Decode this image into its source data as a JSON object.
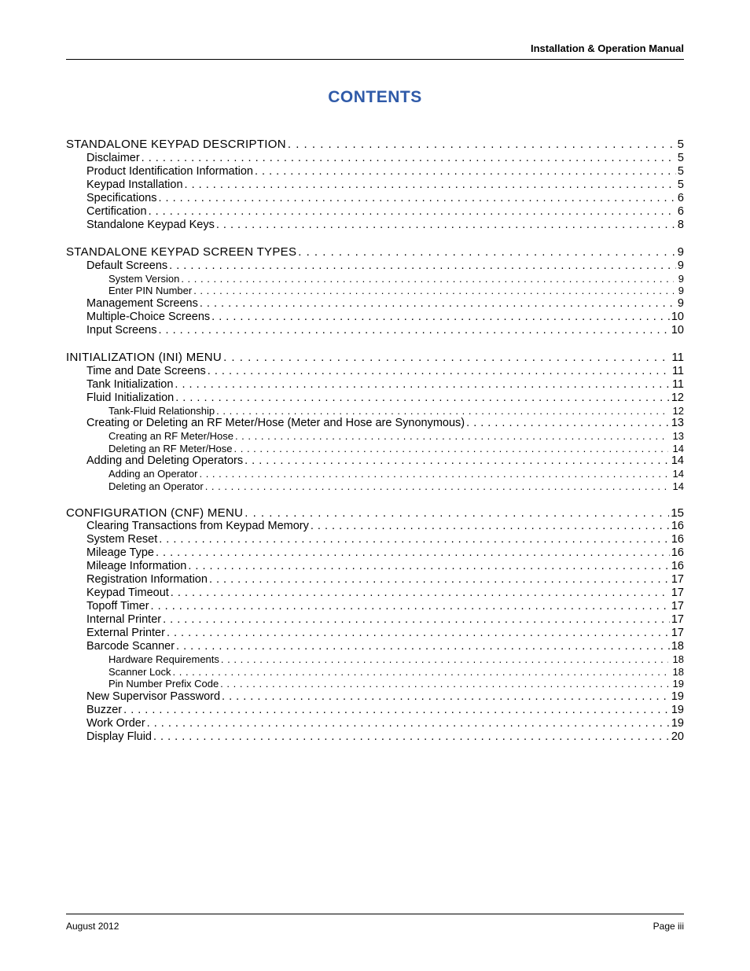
{
  "header": {
    "doc_title": "Installation & Operation Manual"
  },
  "title": "CONTENTS",
  "title_color": "#2f5aa8",
  "footer": {
    "left": "August 2012",
    "right": "Page iii"
  },
  "sections": [
    {
      "heading": {
        "label": "STANDALONE KEYPAD DESCRIPTION",
        "page": "5"
      },
      "items": [
        {
          "level": 1,
          "label": "Disclaimer",
          "page": " 5"
        },
        {
          "level": 1,
          "label": "Product Identification Information",
          "page": " 5"
        },
        {
          "level": 1,
          "label": "Keypad Installation",
          "page": " 5"
        },
        {
          "level": 1,
          "label": "Specifications",
          "page": " 6"
        },
        {
          "level": 1,
          "label": "Certification",
          "page": " 6"
        },
        {
          "level": 1,
          "label": "Standalone Keypad Keys",
          "page": " 8"
        }
      ]
    },
    {
      "heading": {
        "label": "STANDALONE KEYPAD SCREEN TYPES",
        "page": "9"
      },
      "items": [
        {
          "level": 1,
          "label": "Default Screens",
          "page": " 9"
        },
        {
          "level": 2,
          "label": "System Version",
          "page": "9"
        },
        {
          "level": 2,
          "label": "Enter PIN Number",
          "page": "9"
        },
        {
          "level": 1,
          "label": "Management Screens",
          "page": " 9"
        },
        {
          "level": 1,
          "label": "Multiple-Choice Screens",
          "page": "10"
        },
        {
          "level": 1,
          "label": "Input Screens",
          "page": "10"
        }
      ]
    },
    {
      "heading": {
        "label": "INITIALIZATION (INI) MENU",
        "page": "11"
      },
      "items": [
        {
          "level": 1,
          "label": "Time and Date Screens",
          "page": "11"
        },
        {
          "level": 1,
          "label": "Tank Initialization",
          "page": "11"
        },
        {
          "level": 1,
          "label": "Fluid Initialization",
          "page": "12"
        },
        {
          "level": 2,
          "label": "Tank-Fluid Relationship",
          "page": "12"
        },
        {
          "level": 1,
          "label": "Creating or Deleting an RF Meter/Hose (Meter and Hose are Synonymous)",
          "page": "13"
        },
        {
          "level": 2,
          "label": "Creating an RF Meter/Hose",
          "page": "13"
        },
        {
          "level": 2,
          "label": "Deleting an RF Meter/Hose",
          "page": "14"
        },
        {
          "level": 1,
          "label": "Adding and Deleting Operators",
          "page": "14"
        },
        {
          "level": 2,
          "label": "Adding an Operator",
          "page": "14"
        },
        {
          "level": 2,
          "label": "Deleting an Operator",
          "page": "14"
        }
      ]
    },
    {
      "heading": {
        "label": "CONFIGURATION (CNF) MENU",
        "page": "15"
      },
      "items": [
        {
          "level": 1,
          "label": "Clearing Transactions from Keypad Memory",
          "page": "16"
        },
        {
          "level": 1,
          "label": "System Reset",
          "page": "16"
        },
        {
          "level": 1,
          "label": "Mileage Type",
          "page": "16"
        },
        {
          "level": 1,
          "label": "Mileage Information",
          "page": "16"
        },
        {
          "level": 1,
          "label": "Registration Information",
          "page": "17"
        },
        {
          "level": 1,
          "label": "Keypad Timeout",
          "page": "17"
        },
        {
          "level": 1,
          "label": "Topoff Timer",
          "page": "17"
        },
        {
          "level": 1,
          "label": "Internal Printer",
          "page": "17"
        },
        {
          "level": 1,
          "label": "External Printer",
          "page": "17"
        },
        {
          "level": 1,
          "label": "Barcode Scanner",
          "page": "18"
        },
        {
          "level": 2,
          "label": "Hardware Requirements",
          "page": "18"
        },
        {
          "level": 2,
          "label": "Scanner Lock",
          "page": "18"
        },
        {
          "level": 2,
          "label": "Pin Number Prefix Code",
          "page": "19"
        },
        {
          "level": 1,
          "label": "New Supervisor Password",
          "page": "19"
        },
        {
          "level": 1,
          "label": "Buzzer",
          "page": "19"
        },
        {
          "level": 1,
          "label": "Work Order",
          "page": "19"
        },
        {
          "level": 1,
          "label": "Display Fluid",
          "page": "20"
        }
      ]
    }
  ]
}
